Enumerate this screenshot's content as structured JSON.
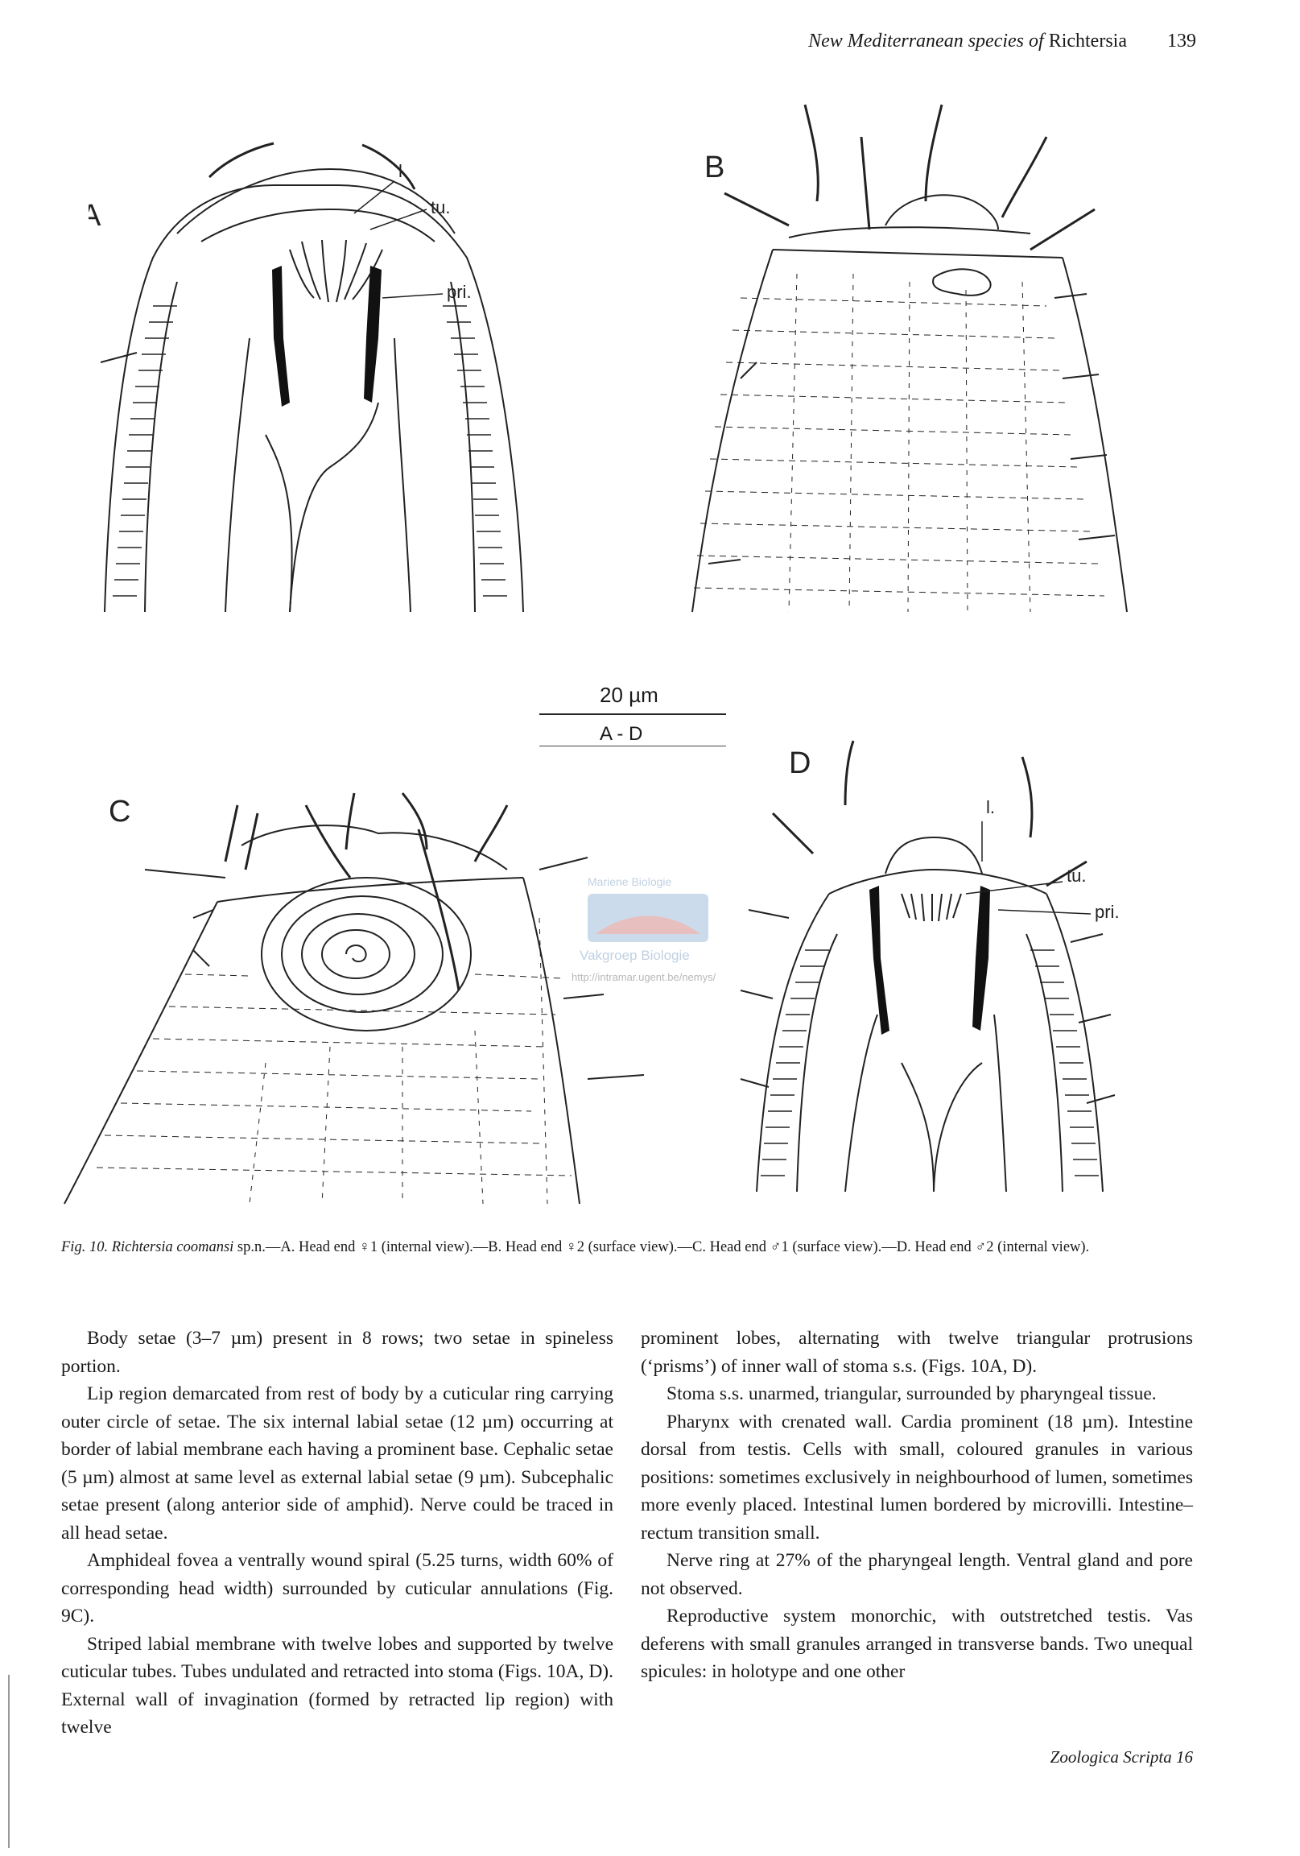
{
  "header": {
    "running_title_italic": "New Mediterranean species of",
    "running_title_genus": "Richtersia",
    "page_number": "139"
  },
  "figure": {
    "panels": {
      "a": "A",
      "b": "B",
      "c": "C",
      "d": "D"
    },
    "labels": {
      "a_l": "l",
      "a_tu": "tu.",
      "a_pri": "pri.",
      "d_l": "l.",
      "d_tu": "tu.",
      "d_pri": "pri."
    },
    "scale": {
      "value": "20 µm",
      "range": "A - D"
    },
    "watermark": {
      "line1": "Mariene Biologie",
      "line2": "Vakgroep Biologie",
      "url": "http://intramar.ugent.be/nemys/"
    }
  },
  "caption": {
    "fig_label": "Fig. 10.",
    "species": "Richtersia coomansi",
    "text": "sp.n.—A. Head end ♀1 (internal view).—B. Head end ♀2 (surface view).—C. Head end ♂1 (surface view).—D. Head end ♂2 (internal view)."
  },
  "body": {
    "left": [
      "Body setae (3–7 µm) present in 8 rows; two setae in spineless portion.",
      "Lip region demarcated from rest of body by a cuticular ring carrying outer circle of setae. The six internal labial setae (12 µm) occurring at border of labial membrane each having a prominent base. Cephalic setae (5 µm) almost at same level as external labial setae (9 µm). Subcephalic setae present (along anterior side of amphid). Nerve could be traced in all head setae.",
      "Amphideal fovea a ventrally wound spiral (5.25 turns, width 60% of corresponding head width) surrounded by cuticular annulations (Fig. 9C).",
      "Striped labial membrane with twelve lobes and supported by twelve cuticular tubes. Tubes undulated and retracted into stoma (Figs. 10A, D). External wall of invagination (formed by retracted lip region) with twelve"
    ],
    "right": [
      "prominent lobes, alternating with twelve triangular protrusions (‘prisms’) of inner wall of stoma s.s. (Figs. 10A, D).",
      "Stoma s.s. unarmed, triangular, surrounded by pharyngeal tissue.",
      "Pharynx with crenated wall. Cardia prominent (18 µm). Intestine dorsal from testis. Cells with small, coloured granules in various positions: sometimes exclusively in neighbourhood of lumen, sometimes more evenly placed. Intestinal lumen bordered by microvilli. Intestine–rectum transition small.",
      "Nerve ring at 27% of the pharyngeal length. Ventral gland and pore not observed.",
      "Reproductive system monorchic, with outstretched testis. Vas deferens with small granules arranged in transverse bands. Two unequal spicules: in holotype and one other"
    ]
  },
  "footer": {
    "journal": "Zoologica Scripta 16"
  }
}
